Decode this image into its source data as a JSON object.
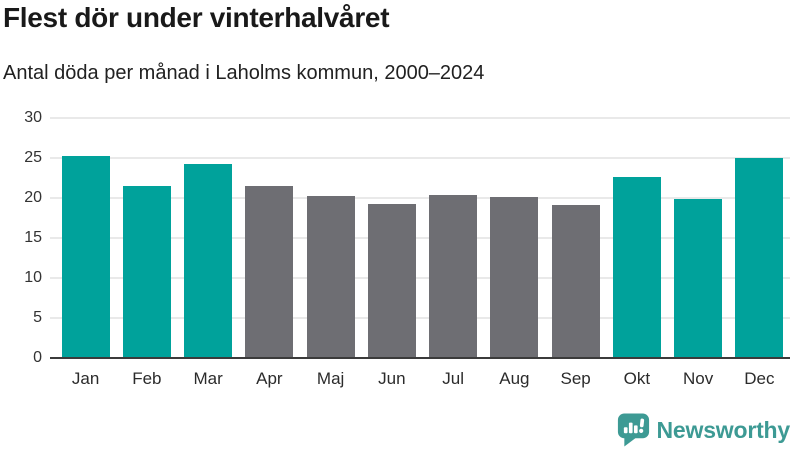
{
  "header": {
    "title": "Flest dör under vinterhalvåret",
    "subtitle": "Antal döda per månad i Laholms kommun, 2000–2024"
  },
  "chart_data": {
    "type": "bar",
    "title": "Flest dör under vinterhalvåret",
    "subtitle": "Antal döda per månad i Laholms kommun, 2000–2024",
    "categories": [
      "Jan",
      "Feb",
      "Mar",
      "Apr",
      "Maj",
      "Jun",
      "Jul",
      "Aug",
      "Sep",
      "Okt",
      "Nov",
      "Dec"
    ],
    "values": [
      25.3,
      21.5,
      24.2,
      21.5,
      20.3,
      19.3,
      20.4,
      20.1,
      19.1,
      22.6,
      19.9,
      25.0
    ],
    "bar_colors": [
      "#00a29b",
      "#00a29b",
      "#00a29b",
      "#6e6e73",
      "#6e6e73",
      "#6e6e73",
      "#6e6e73",
      "#6e6e73",
      "#6e6e73",
      "#00a29b",
      "#00a29b",
      "#00a29b"
    ],
    "xlabel": "",
    "ylabel": "",
    "ylim": [
      0,
      30
    ],
    "yticks": [
      0,
      5,
      10,
      15,
      20,
      25,
      30
    ],
    "grid": true,
    "legend": false,
    "colors": {
      "winter_highlight": "#00a29b",
      "summer_base": "#6e6e73",
      "gridline": "#e9e9e9",
      "axis_line": "#3b3b3b"
    }
  },
  "footer": {
    "brand": "Newsworthy",
    "brand_color": "#3d9a94",
    "logo_icon": "newsworthy-speech-bubble-bar-chart"
  }
}
